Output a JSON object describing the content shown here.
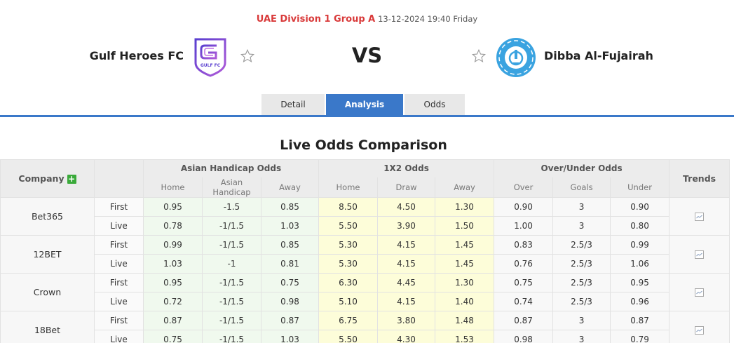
{
  "match": {
    "league": "UAE Division 1 Group A",
    "datetime": "13-12-2024 19:40 Friday",
    "home_team": "Gulf Heroes FC",
    "away_team": "Dibba Al-Fujairah",
    "vs_label": "VS",
    "home_logo_text": "GULF FC"
  },
  "tabs": [
    {
      "label": "Detail",
      "active": false
    },
    {
      "label": "Analysis",
      "active": true
    },
    {
      "label": "Odds",
      "active": false
    }
  ],
  "section_title": "Live Odds Comparison",
  "table": {
    "headers": {
      "company": "Company",
      "trends": "Trends",
      "groups": [
        "Asian Handicap Odds",
        "1X2 Odds",
        "Over/Under Odds"
      ],
      "sub": [
        "Home",
        "Asian Handicap",
        "Away",
        "Home",
        "Draw",
        "Away",
        "Over",
        "Goals",
        "Under"
      ]
    },
    "companies": [
      {
        "name": "Bet365",
        "rows": [
          {
            "kind": "First",
            "ah": [
              "0.95",
              "-1.5",
              "0.85"
            ],
            "x12": [
              "8.50",
              "4.50",
              "1.30"
            ],
            "ou": [
              "0.90",
              "3",
              "0.90"
            ]
          },
          {
            "kind": "Live",
            "ah": [
              "0.78",
              "-1/1.5",
              "1.03"
            ],
            "x12": [
              "5.50",
              "3.90",
              "1.50"
            ],
            "ou": [
              "1.00",
              "3",
              "0.80"
            ]
          }
        ]
      },
      {
        "name": "12BET",
        "rows": [
          {
            "kind": "First",
            "ah": [
              "0.99",
              "-1/1.5",
              "0.85"
            ],
            "x12": [
              "5.30",
              "4.15",
              "1.45"
            ],
            "ou": [
              "0.83",
              "2.5/3",
              "0.99"
            ]
          },
          {
            "kind": "Live",
            "ah": [
              "1.03",
              "-1",
              "0.81"
            ],
            "x12": [
              "5.30",
              "4.15",
              "1.45"
            ],
            "ou": [
              "0.76",
              "2.5/3",
              "1.06"
            ]
          }
        ]
      },
      {
        "name": "Crown",
        "rows": [
          {
            "kind": "First",
            "ah": [
              "0.95",
              "-1/1.5",
              "0.75"
            ],
            "x12": [
              "6.30",
              "4.45",
              "1.30"
            ],
            "ou": [
              "0.75",
              "2.5/3",
              "0.95"
            ]
          },
          {
            "kind": "Live",
            "ah": [
              "0.72",
              "-1/1.5",
              "0.98"
            ],
            "x12": [
              "5.10",
              "4.15",
              "1.40"
            ],
            "ou": [
              "0.74",
              "2.5/3",
              "0.96"
            ]
          }
        ]
      },
      {
        "name": "18Bet",
        "rows": [
          {
            "kind": "First",
            "ah": [
              "0.87",
              "-1/1.5",
              "0.87"
            ],
            "x12": [
              "6.75",
              "3.80",
              "1.48"
            ],
            "ou": [
              "0.87",
              "3",
              "0.87"
            ]
          },
          {
            "kind": "Live",
            "ah": [
              "0.75",
              "-1/1.5",
              "1.03"
            ],
            "x12": [
              "5.50",
              "4.30",
              "1.53"
            ],
            "ou": [
              "0.98",
              "3",
              "0.79"
            ]
          }
        ]
      }
    ]
  },
  "colors": {
    "league_red": "#d93a3a",
    "tab_blue": "#3a78c9",
    "ah_bg": "#f0f9ee",
    "x12_bg": "#fdfdd9",
    "plus_green": "#3aaa3a",
    "home_logo_purple": "#7b4fd6",
    "away_logo_blue": "#3aa3e0"
  }
}
